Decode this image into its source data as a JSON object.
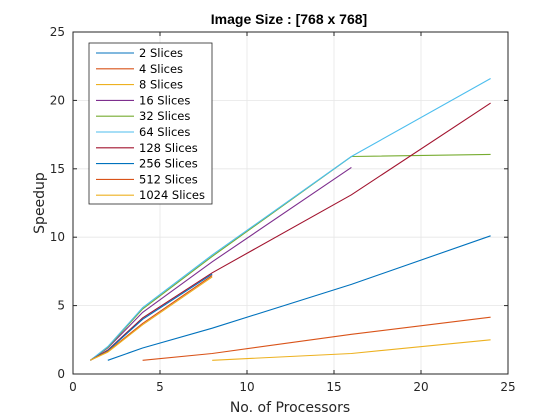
{
  "chart_data": {
    "type": "line",
    "title": "Image Size : [768 x 768]",
    "xlabel": "No. of Processors",
    "ylabel": "Speedup",
    "xlim": [
      0,
      25
    ],
    "ylim": [
      0,
      25
    ],
    "xticks": [
      0,
      5,
      10,
      15,
      20,
      25
    ],
    "yticks": [
      0,
      5,
      10,
      15,
      20,
      25
    ],
    "grid": true,
    "legend_position": "top-left",
    "series": [
      {
        "name": "2 Slices",
        "color": "#0072BD",
        "x": [
          2,
          4,
          8,
          16,
          24
        ],
        "y": [
          1.0,
          1.9,
          3.35,
          6.55,
          10.1
        ]
      },
      {
        "name": "4 Slices",
        "color": "#D95319",
        "x": [
          4,
          8,
          16,
          24
        ],
        "y": [
          1.0,
          1.5,
          2.9,
          4.15
        ]
      },
      {
        "name": "8 Slices",
        "color": "#EDB120",
        "x": [
          8,
          16,
          24
        ],
        "y": [
          1.0,
          1.5,
          2.5
        ]
      },
      {
        "name": "16 Slices",
        "color": "#7E2F8E",
        "x": [
          1,
          2,
          4,
          8,
          16
        ],
        "y": [
          1.0,
          1.9,
          4.5,
          8.2,
          15.1
        ]
      },
      {
        "name": "32 Slices",
        "color": "#77AC30",
        "x": [
          1,
          2,
          4,
          8,
          16,
          24
        ],
        "y": [
          1.0,
          1.95,
          4.75,
          8.6,
          15.9,
          16.05
        ]
      },
      {
        "name": "64 Slices",
        "color": "#4DBEEE",
        "x": [
          1,
          2,
          4,
          8,
          16,
          24
        ],
        "y": [
          1.0,
          2.0,
          4.85,
          8.7,
          15.9,
          21.6
        ]
      },
      {
        "name": "128 Slices",
        "color": "#A2142F",
        "x": [
          1,
          2,
          4,
          8,
          16,
          24
        ],
        "y": [
          1.0,
          1.75,
          4.1,
          7.4,
          13.1,
          19.8
        ]
      },
      {
        "name": "256 Slices",
        "color": "#0072BD",
        "x": [
          1,
          2,
          4,
          8
        ],
        "y": [
          1.0,
          1.7,
          4.0,
          7.3
        ]
      },
      {
        "name": "512 Slices",
        "color": "#D95319",
        "x": [
          1,
          2,
          4,
          8
        ],
        "y": [
          1.0,
          1.65,
          3.7,
          7.2
        ]
      },
      {
        "name": "1024 Slices",
        "color": "#EDB120",
        "x": [
          1,
          2,
          4,
          8
        ],
        "y": [
          1.0,
          1.6,
          3.6,
          7.1
        ]
      }
    ]
  }
}
